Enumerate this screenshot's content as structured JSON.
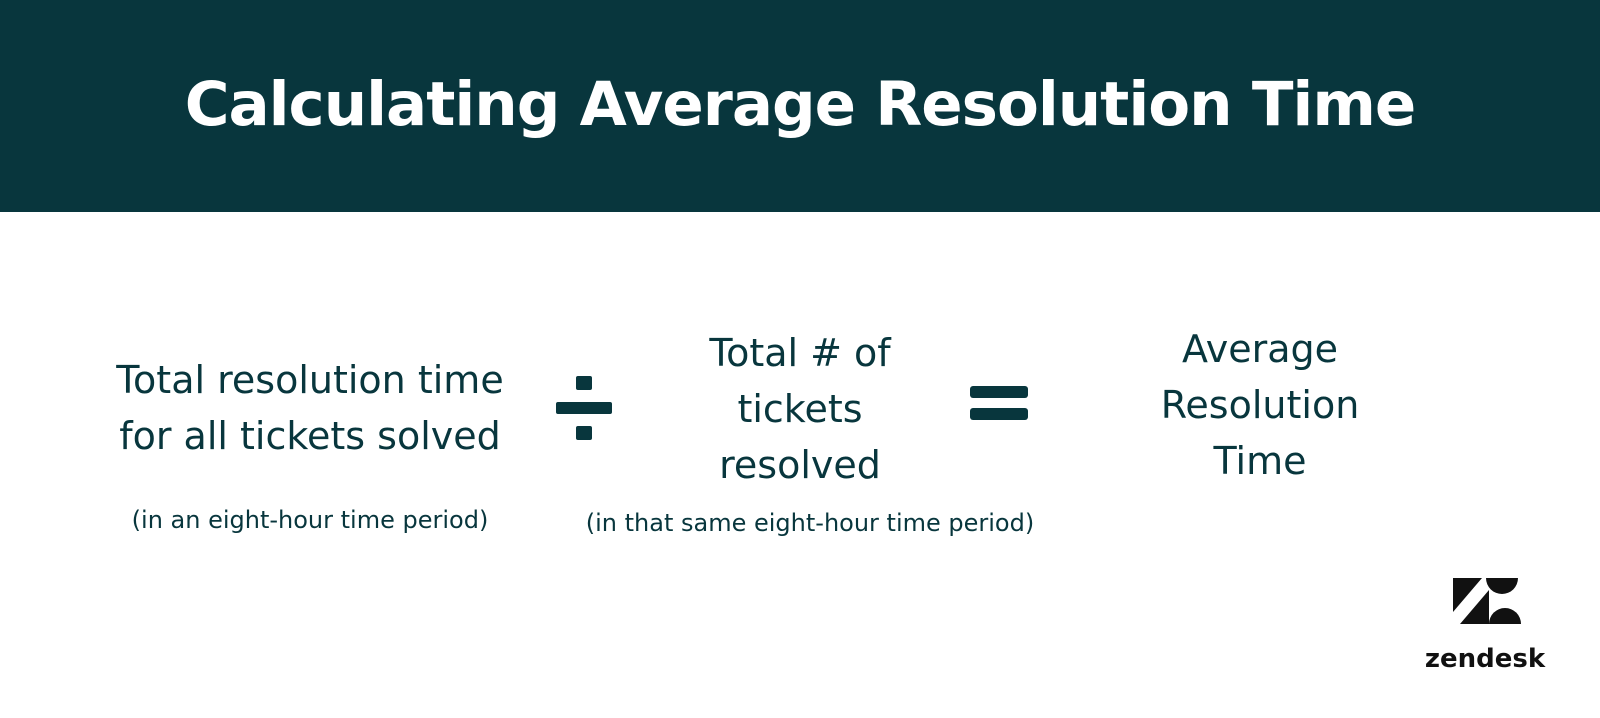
{
  "title": "Calculating Average Resolution Time",
  "formula": {
    "numerator": {
      "label": "Total resolution time\nfor all tickets solved",
      "note": "(in an eight-hour time period)"
    },
    "operator_divide": "divide-icon",
    "denominator": {
      "label": "Total # of\ntickets\nresolved",
      "note": "(in that same eight-hour time period)"
    },
    "operator_equals": "equals-icon",
    "result": {
      "label": "Average\nResolution\nTime"
    }
  },
  "brand": {
    "logo_icon": "zendesk-logo-icon",
    "name": "zendesk"
  },
  "colors": {
    "header_bg": "#08363d",
    "title_text": "#ffffff",
    "body_text": "#08363d",
    "logo": "#111111"
  }
}
